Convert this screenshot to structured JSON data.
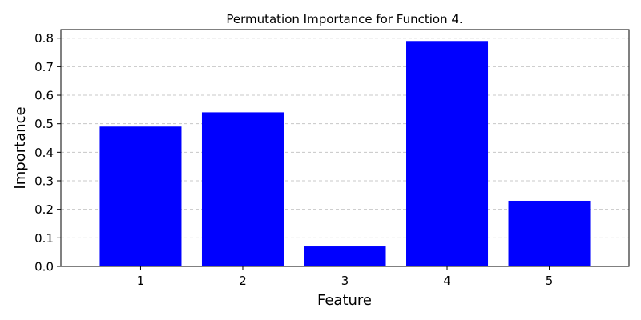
{
  "chart_data": {
    "type": "bar",
    "title": "Permutation Importance for Function 4.",
    "xlabel": "Feature",
    "ylabel": "Importance",
    "categories": [
      "1",
      "2",
      "3",
      "4",
      "5"
    ],
    "values": [
      0.49,
      0.54,
      0.07,
      0.79,
      0.23
    ],
    "ylim": [
      0,
      0.83
    ],
    "yticks": [
      0.0,
      0.1,
      0.2,
      0.3,
      0.4,
      0.5,
      0.6,
      0.7,
      0.8
    ],
    "ytick_labels": [
      "0.0",
      "0.1",
      "0.2",
      "0.3",
      "0.4",
      "0.5",
      "0.6",
      "0.7",
      "0.8"
    ],
    "grid": "y, dashed",
    "bar_color": "#0000ff",
    "grid_color": "#c8c8c8"
  }
}
